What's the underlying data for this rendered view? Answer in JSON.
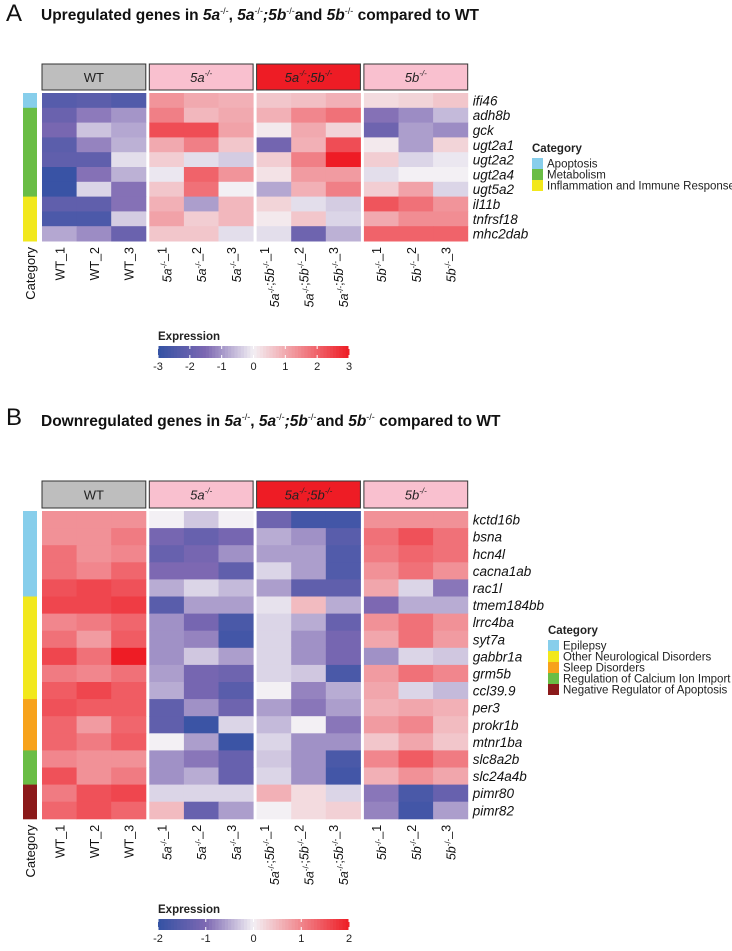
{
  "chart_data": [
    {
      "type": "heatmap",
      "panel_label": "A",
      "title_parts": [
        {
          "t": "Upregulated genes in ",
          "i": false
        },
        {
          "t": "5a",
          "i": true
        },
        {
          "t": "-/-",
          "sup": true
        },
        {
          "t": ", ",
          "i": false
        },
        {
          "t": "5a",
          "i": true
        },
        {
          "t": "-/-",
          "sup": true
        },
        {
          "t": ";5b",
          "i": true
        },
        {
          "t": "-/-",
          "sup": true
        },
        {
          "t": "and ",
          "i": false
        },
        {
          "t": "5b",
          "i": true
        },
        {
          "t": "-/-",
          "sup": true
        },
        {
          "t": " compared to WT",
          "i": false
        }
      ],
      "groups": [
        {
          "label": "WT",
          "italic": false,
          "color": "#bebebe",
          "sup": ""
        },
        {
          "label": "5a",
          "italic": true,
          "color": "#f9c0cf",
          "sup": "-/-"
        },
        {
          "label": "5a",
          "label2": ";5b",
          "italic": true,
          "color": "#ee1c25",
          "sup": "-/-"
        },
        {
          "label": "5b",
          "italic": true,
          "color": "#f9c0cf",
          "sup": "-/-"
        }
      ],
      "columns": [
        "WT_1",
        "WT_2",
        "WT_3",
        "5a-/-_1",
        "5a-/-_2",
        "5a-/-_3",
        "5a-/-;5b-/-_1",
        "5a-/-;5b-/-_2",
        "5a-/-;5b-/-_3",
        "5b-/-_1",
        "5b-/-_2",
        "5b-/-_3"
      ],
      "column_labels": [
        {
          "a": "WT_1"
        },
        {
          "a": "WT_2"
        },
        {
          "a": "WT_3"
        },
        {
          "g": "5a",
          "n": "1"
        },
        {
          "g": "5a",
          "n": "2"
        },
        {
          "g": "5a",
          "n": "3"
        },
        {
          "g": "5a;5b",
          "n": "1"
        },
        {
          "g": "5a;5b",
          "n": "2"
        },
        {
          "g": "5a;5b",
          "n": "3"
        },
        {
          "g": "5b",
          "n": "1"
        },
        {
          "g": "5b",
          "n": "2"
        },
        {
          "g": "5b",
          "n": "3"
        }
      ],
      "category_axis_label": "Category",
      "rows": [
        "ifi46",
        "adh8b",
        "gck",
        "ugt2a1",
        "ugt2a2",
        "ugt2a4",
        "ugt5a2",
        "il11b",
        "tnfrsf18",
        "mhc2dab"
      ],
      "row_categories": [
        "Apoptosis",
        "Metabolism",
        "Metabolism",
        "Metabolism",
        "Metabolism",
        "Metabolism",
        "Metabolism",
        "Inflammation and Immune Response",
        "Inflammation and Immune Response",
        "Inflammation and Immune Response"
      ],
      "values": [
        [
          -2.3,
          -2.2,
          -2.4,
          1.3,
          1.0,
          0.9,
          0.6,
          0.7,
          0.9,
          0.3,
          0.4,
          0.6
        ],
        [
          -1.9,
          -1.3,
          -1.0,
          1.6,
          0.8,
          1.0,
          0.9,
          1.5,
          1.8,
          -1.4,
          -1.1,
          -0.6
        ],
        [
          -1.6,
          -0.5,
          -0.8,
          2.3,
          2.3,
          1.1,
          0.1,
          1.0,
          0.4,
          -1.8,
          -0.9,
          -1.1
        ],
        [
          -2.2,
          -1.2,
          -0.7,
          1.0,
          1.6,
          0.6,
          -1.7,
          0.9,
          2.3,
          0.1,
          -0.9,
          0.4
        ],
        [
          -2.1,
          -2.1,
          -0.2,
          0.5,
          -0.2,
          -0.4,
          0.5,
          1.6,
          3.0,
          0.5,
          -0.3,
          -0.1
        ],
        [
          -2.9,
          -1.4,
          -0.7,
          -0.1,
          2.0,
          1.3,
          0.2,
          1.2,
          1.2,
          -0.2,
          0.0,
          0.0
        ],
        [
          -2.9,
          -0.3,
          -1.4,
          0.6,
          1.8,
          0.0,
          -0.8,
          0.9,
          1.6,
          0.5,
          1.1,
          -0.3
        ],
        [
          -2.1,
          -2.1,
          -1.4,
          0.9,
          -0.9,
          0.8,
          0.4,
          -0.2,
          -0.4,
          2.2,
          1.8,
          1.3
        ],
        [
          -2.5,
          -2.5,
          -0.4,
          1.1,
          0.5,
          0.8,
          0.1,
          0.6,
          -0.3,
          1.0,
          1.4,
          1.4
        ],
        [
          -0.8,
          -1.1,
          -1.9,
          0.6,
          0.6,
          -0.2,
          -0.2,
          -1.8,
          -0.7,
          2.0,
          2.0,
          2.0
        ]
      ],
      "legend": {
        "title": "Category",
        "items": [
          {
            "label": "Apoptosis",
            "color": "#87ceeb"
          },
          {
            "label": "Metabolism",
            "color": "#6abd45"
          },
          {
            "label": "Inflammation and Immune Response",
            "color": "#f2e81c"
          }
        ]
      },
      "colorbar": {
        "title": "Expression",
        "min": -3,
        "max": 3,
        "ticks": [
          -3,
          -2,
          -1,
          0,
          1,
          2,
          3
        ],
        "low_color": "#3452a4",
        "mid_color": "#f3f0f4",
        "high_color": "#ee1c25"
      }
    },
    {
      "type": "heatmap",
      "panel_label": "B",
      "title_parts": [
        {
          "t": "Downregulated genes in ",
          "i": false
        },
        {
          "t": "5a",
          "i": true
        },
        {
          "t": "-/-",
          "sup": true
        },
        {
          "t": ", ",
          "i": false
        },
        {
          "t": "5a",
          "i": true
        },
        {
          "t": "-/-",
          "sup": true
        },
        {
          "t": ";5b",
          "i": true
        },
        {
          "t": "-/-",
          "sup": true
        },
        {
          "t": "and ",
          "i": false
        },
        {
          "t": "5b",
          "i": true
        },
        {
          "t": "-/-",
          "sup": true
        },
        {
          "t": " compared to WT",
          "i": false
        }
      ],
      "groups": [
        {
          "label": "WT",
          "italic": false,
          "color": "#bebebe",
          "sup": ""
        },
        {
          "label": "5a",
          "italic": true,
          "color": "#f9c0cf",
          "sup": "-/-"
        },
        {
          "label": "5a",
          "label2": ";5b",
          "italic": true,
          "color": "#ee1c25",
          "sup": "-/-"
        },
        {
          "label": "5b",
          "italic": true,
          "color": "#f9c0cf",
          "sup": "-/-"
        }
      ],
      "columns": [
        "WT_1",
        "WT_2",
        "WT_3",
        "5a-/-_1",
        "5a-/-_2",
        "5a-/-_3",
        "5a-/-;5b-/-_1",
        "5a-/-;5b-/-_2",
        "5a-/-;5b-/-_3",
        "5b-/-_1",
        "5b-/-_2",
        "5b-/-_3"
      ],
      "column_labels": [
        {
          "a": "WT_1"
        },
        {
          "a": "WT_2"
        },
        {
          "a": "WT_3"
        },
        {
          "g": "5a",
          "n": "1"
        },
        {
          "g": "5a",
          "n": "2"
        },
        {
          "g": "5a",
          "n": "3"
        },
        {
          "g": "5a;5b",
          "n": "1"
        },
        {
          "g": "5a;5b",
          "n": "2"
        },
        {
          "g": "5a;5b",
          "n": "3"
        },
        {
          "g": "5b",
          "n": "1"
        },
        {
          "g": "5b",
          "n": "2"
        },
        {
          "g": "5b",
          "n": "3"
        }
      ],
      "category_axis_label": "Category",
      "rows": [
        "kctd16b",
        "bsna",
        "hcn4l",
        "cacna1ab",
        "rac1l",
        "tmem184bb",
        "lrrc4ba",
        "syt7a",
        "gabbr1a",
        "grm5b",
        "ccl39.9",
        "per3",
        "prokr1b",
        "mtnr1ba",
        "slc8a2b",
        "slc24a4b",
        "pimr80",
        "pimr82"
      ],
      "row_categories": [
        "Epilepsy",
        "Epilepsy",
        "Epilepsy",
        "Epilepsy",
        "Epilepsy",
        "Other Neurological Disorders",
        "Other Neurological Disorders",
        "Other Neurological Disorders",
        "Other Neurological Disorders",
        "Other Neurological Disorders",
        "Other Neurological Disorders",
        "Sleep Disorders",
        "Sleep Disorders",
        "Sleep Disorders",
        "Regulation of Calcium Ion Import",
        "Regulation of Calcium Ion Import",
        "Negative Regulator of Apoptosis",
        "Negative Regulator of Apoptosis"
      ],
      "values": [
        [
          0.9,
          0.9,
          0.9,
          0.0,
          -0.3,
          0.0,
          -1.2,
          -1.8,
          -1.8,
          0.9,
          0.9,
          0.9
        ],
        [
          0.9,
          0.9,
          1.1,
          -1.1,
          -1.3,
          -1.1,
          -0.5,
          -0.7,
          -1.5,
          1.2,
          1.5,
          1.2
        ],
        [
          1.2,
          0.9,
          1.0,
          -1.3,
          -1.1,
          -0.7,
          -0.6,
          -0.6,
          -1.6,
          1.1,
          1.3,
          1.2
        ],
        [
          1.2,
          1.0,
          1.3,
          -1.0,
          -1.0,
          -1.4,
          -0.2,
          -0.6,
          -1.6,
          0.9,
          1.2,
          0.9
        ],
        [
          1.5,
          1.6,
          1.5,
          -0.5,
          -0.2,
          -0.4,
          -0.6,
          -1.4,
          -1.4,
          0.7,
          -0.2,
          -0.9
        ],
        [
          1.6,
          1.6,
          1.7,
          -1.5,
          -0.6,
          -0.6,
          -0.1,
          0.5,
          -0.5,
          -1.0,
          -0.5,
          -0.5
        ],
        [
          1.0,
          1.1,
          1.3,
          -0.7,
          -1.1,
          -1.7,
          -0.2,
          -0.5,
          -1.3,
          0.9,
          1.2,
          0.9
        ],
        [
          1.2,
          0.8,
          1.4,
          -0.7,
          -0.8,
          -1.8,
          -0.2,
          -0.7,
          -1.1,
          0.7,
          1.2,
          0.8
        ],
        [
          1.6,
          1.2,
          2.0,
          -0.7,
          -0.3,
          -0.6,
          -0.2,
          -0.7,
          -1.1,
          -0.7,
          -0.2,
          -0.3
        ],
        [
          1.1,
          1.0,
          1.2,
          -0.6,
          -1.1,
          -1.2,
          -0.2,
          -0.3,
          -1.7,
          0.8,
          1.2,
          1.0
        ],
        [
          1.4,
          1.6,
          1.4,
          -0.5,
          -1.1,
          -1.5,
          0.0,
          -0.8,
          -0.5,
          0.7,
          -0.2,
          -0.4
        ],
        [
          1.5,
          1.4,
          1.4,
          -1.4,
          -0.7,
          -1.2,
          -0.6,
          -0.9,
          -0.6,
          0.6,
          0.7,
          0.6
        ],
        [
          1.3,
          0.8,
          1.3,
          -1.4,
          -1.9,
          -0.2,
          -0.4,
          0.0,
          -0.9,
          0.8,
          1.0,
          0.5
        ],
        [
          1.3,
          1.1,
          1.4,
          0.0,
          -0.6,
          -1.9,
          -0.2,
          -0.7,
          -0.7,
          0.4,
          0.7,
          0.4
        ],
        [
          1.0,
          0.9,
          0.9,
          -0.7,
          -0.9,
          -1.3,
          -0.3,
          -0.7,
          -1.7,
          1.0,
          1.4,
          1.1
        ],
        [
          1.5,
          0.9,
          1.1,
          -0.7,
          -0.5,
          -1.3,
          -0.2,
          -0.7,
          -1.8,
          0.6,
          0.9,
          0.7
        ],
        [
          1.1,
          1.5,
          1.6,
          -0.2,
          -0.2,
          -0.2,
          0.6,
          0.2,
          -0.2,
          -0.9,
          -1.7,
          -1.3
        ],
        [
          1.3,
          1.5,
          1.3,
          0.5,
          -1.3,
          -0.6,
          0.0,
          0.2,
          0.3,
          -0.8,
          -1.8,
          -0.6
        ]
      ],
      "legend": {
        "title": "Category",
        "items": [
          {
            "label": "Epilepsy",
            "color": "#87ceeb"
          },
          {
            "label": "Other Neurological Disorders",
            "color": "#f2e81c"
          },
          {
            "label": "Sleep Disorders",
            "color": "#f7a21b"
          },
          {
            "label": "Regulation of Calcium Ion Import",
            "color": "#6abd45"
          },
          {
            "label": "Negative Regulator of Apoptosis",
            "color": "#8b1a1a"
          }
        ]
      },
      "colorbar": {
        "title": "Expression",
        "min": -2,
        "max": 2,
        "ticks": [
          -2,
          -1,
          0,
          1,
          2
        ],
        "low_color": "#3452a4",
        "mid_color": "#f3f0f4",
        "high_color": "#ee1c25"
      }
    }
  ]
}
